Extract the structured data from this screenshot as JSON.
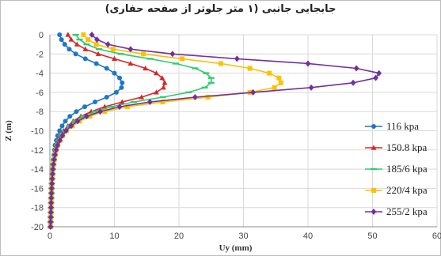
{
  "chart_data": {
    "type": "line",
    "title": "جابجایی جانبی (۱ متر جلوتر از صفحه حفاری)",
    "xlabel": "Uy (mm)",
    "ylabel": "Z (m)",
    "xlim": [
      0,
      60
    ],
    "ylim": [
      -20,
      0
    ],
    "xticks": [
      "0",
      "10",
      "20",
      "30",
      "40",
      "50",
      "60"
    ],
    "yticks": [
      "0",
      "-2",
      "-4",
      "-6",
      "-8",
      "-10",
      "-12",
      "-14",
      "-16",
      "-18",
      "-20"
    ],
    "grid": true,
    "legend_position": "right",
    "y": [
      0,
      -0.5,
      -1,
      -1.5,
      -2,
      -2.5,
      -3,
      -3.5,
      -4,
      -4.5,
      -5,
      -5.5,
      -6,
      -6.5,
      -7,
      -7.5,
      -8,
      -8.5,
      -9,
      -9.5,
      -10,
      -10.5,
      -11,
      -11.5,
      -12,
      -12.5,
      -13,
      -13.5,
      -14,
      -14.5,
      -15,
      -15.5,
      -16,
      -16.5,
      -17,
      -17.5,
      -18,
      -18.5,
      -19,
      -19.5,
      -20
    ],
    "series": [
      {
        "name": "116 kpa",
        "color": "#1f77c4",
        "marker": "circle",
        "x": [
          1.5,
          1.8,
          2.3,
          3.0,
          4.0,
          5.5,
          7.2,
          8.8,
          10.0,
          10.8,
          11.2,
          11.1,
          10.3,
          8.8,
          7.0,
          5.4,
          4.1,
          3.1,
          2.4,
          1.9,
          1.5,
          1.2,
          1.0,
          0.8,
          0.7,
          0.6,
          0.5,
          0.45,
          0.4,
          0.35,
          0.3,
          0.28,
          0.25,
          0.22,
          0.2,
          0.18,
          0.16,
          0.14,
          0.12,
          0.1,
          0.1
        ]
      },
      {
        "name": "150.8 kpa",
        "color": "#d62728",
        "marker": "triangle",
        "x": [
          2.8,
          3.3,
          4.2,
          5.5,
          7.5,
          10.0,
          12.5,
          14.8,
          16.5,
          17.4,
          17.8,
          17.6,
          16.5,
          14.2,
          11.2,
          8.5,
          6.4,
          4.8,
          3.6,
          2.8,
          2.1,
          1.6,
          1.3,
          1.0,
          0.85,
          0.7,
          0.6,
          0.5,
          0.45,
          0.4,
          0.35,
          0.3,
          0.27,
          0.24,
          0.21,
          0.19,
          0.17,
          0.15,
          0.13,
          0.11,
          0.1
        ]
      },
      {
        "name": "185/6 kpa",
        "color": "#2ecc71",
        "marker": "dash",
        "x": [
          4.0,
          4.6,
          5.7,
          7.6,
          11.0,
          15.5,
          19.5,
          22.5,
          24.2,
          25.0,
          25.0,
          24.0,
          21.5,
          17.5,
          13.0,
          9.5,
          7.0,
          5.2,
          3.9,
          3.0,
          2.3,
          1.8,
          1.4,
          1.1,
          0.9,
          0.75,
          0.62,
          0.52,
          0.46,
          0.4,
          0.35,
          0.31,
          0.27,
          0.24,
          0.21,
          0.19,
          0.17,
          0.15,
          0.13,
          0.11,
          0.1
        ]
      },
      {
        "name": "220/4 kpa",
        "color": "#ffc000",
        "marker": "square",
        "x": [
          5.2,
          5.9,
          7.2,
          9.8,
          14.5,
          20.5,
          26.5,
          31.0,
          34.0,
          35.5,
          35.8,
          34.8,
          31.0,
          24.5,
          17.5,
          12.0,
          8.5,
          6.2,
          4.6,
          3.5,
          2.6,
          2.0,
          1.6,
          1.25,
          1.0,
          0.82,
          0.68,
          0.56,
          0.48,
          0.42,
          0.36,
          0.32,
          0.28,
          0.25,
          0.22,
          0.2,
          0.18,
          0.16,
          0.14,
          0.12,
          0.1
        ]
      },
      {
        "name": "255/2 kpa",
        "color": "#7030a0",
        "marker": "diamond",
        "x": [
          6.5,
          7.3,
          9.0,
          12.5,
          19.0,
          29.0,
          40.0,
          47.5,
          51.0,
          50.5,
          47.0,
          40.5,
          31.5,
          22.5,
          15.5,
          10.8,
          7.8,
          5.7,
          4.3,
          3.3,
          2.5,
          1.95,
          1.55,
          1.2,
          0.98,
          0.8,
          0.66,
          0.55,
          0.47,
          0.41,
          0.36,
          0.32,
          0.28,
          0.25,
          0.22,
          0.2,
          0.18,
          0.16,
          0.14,
          0.12,
          0.1
        ]
      }
    ]
  }
}
